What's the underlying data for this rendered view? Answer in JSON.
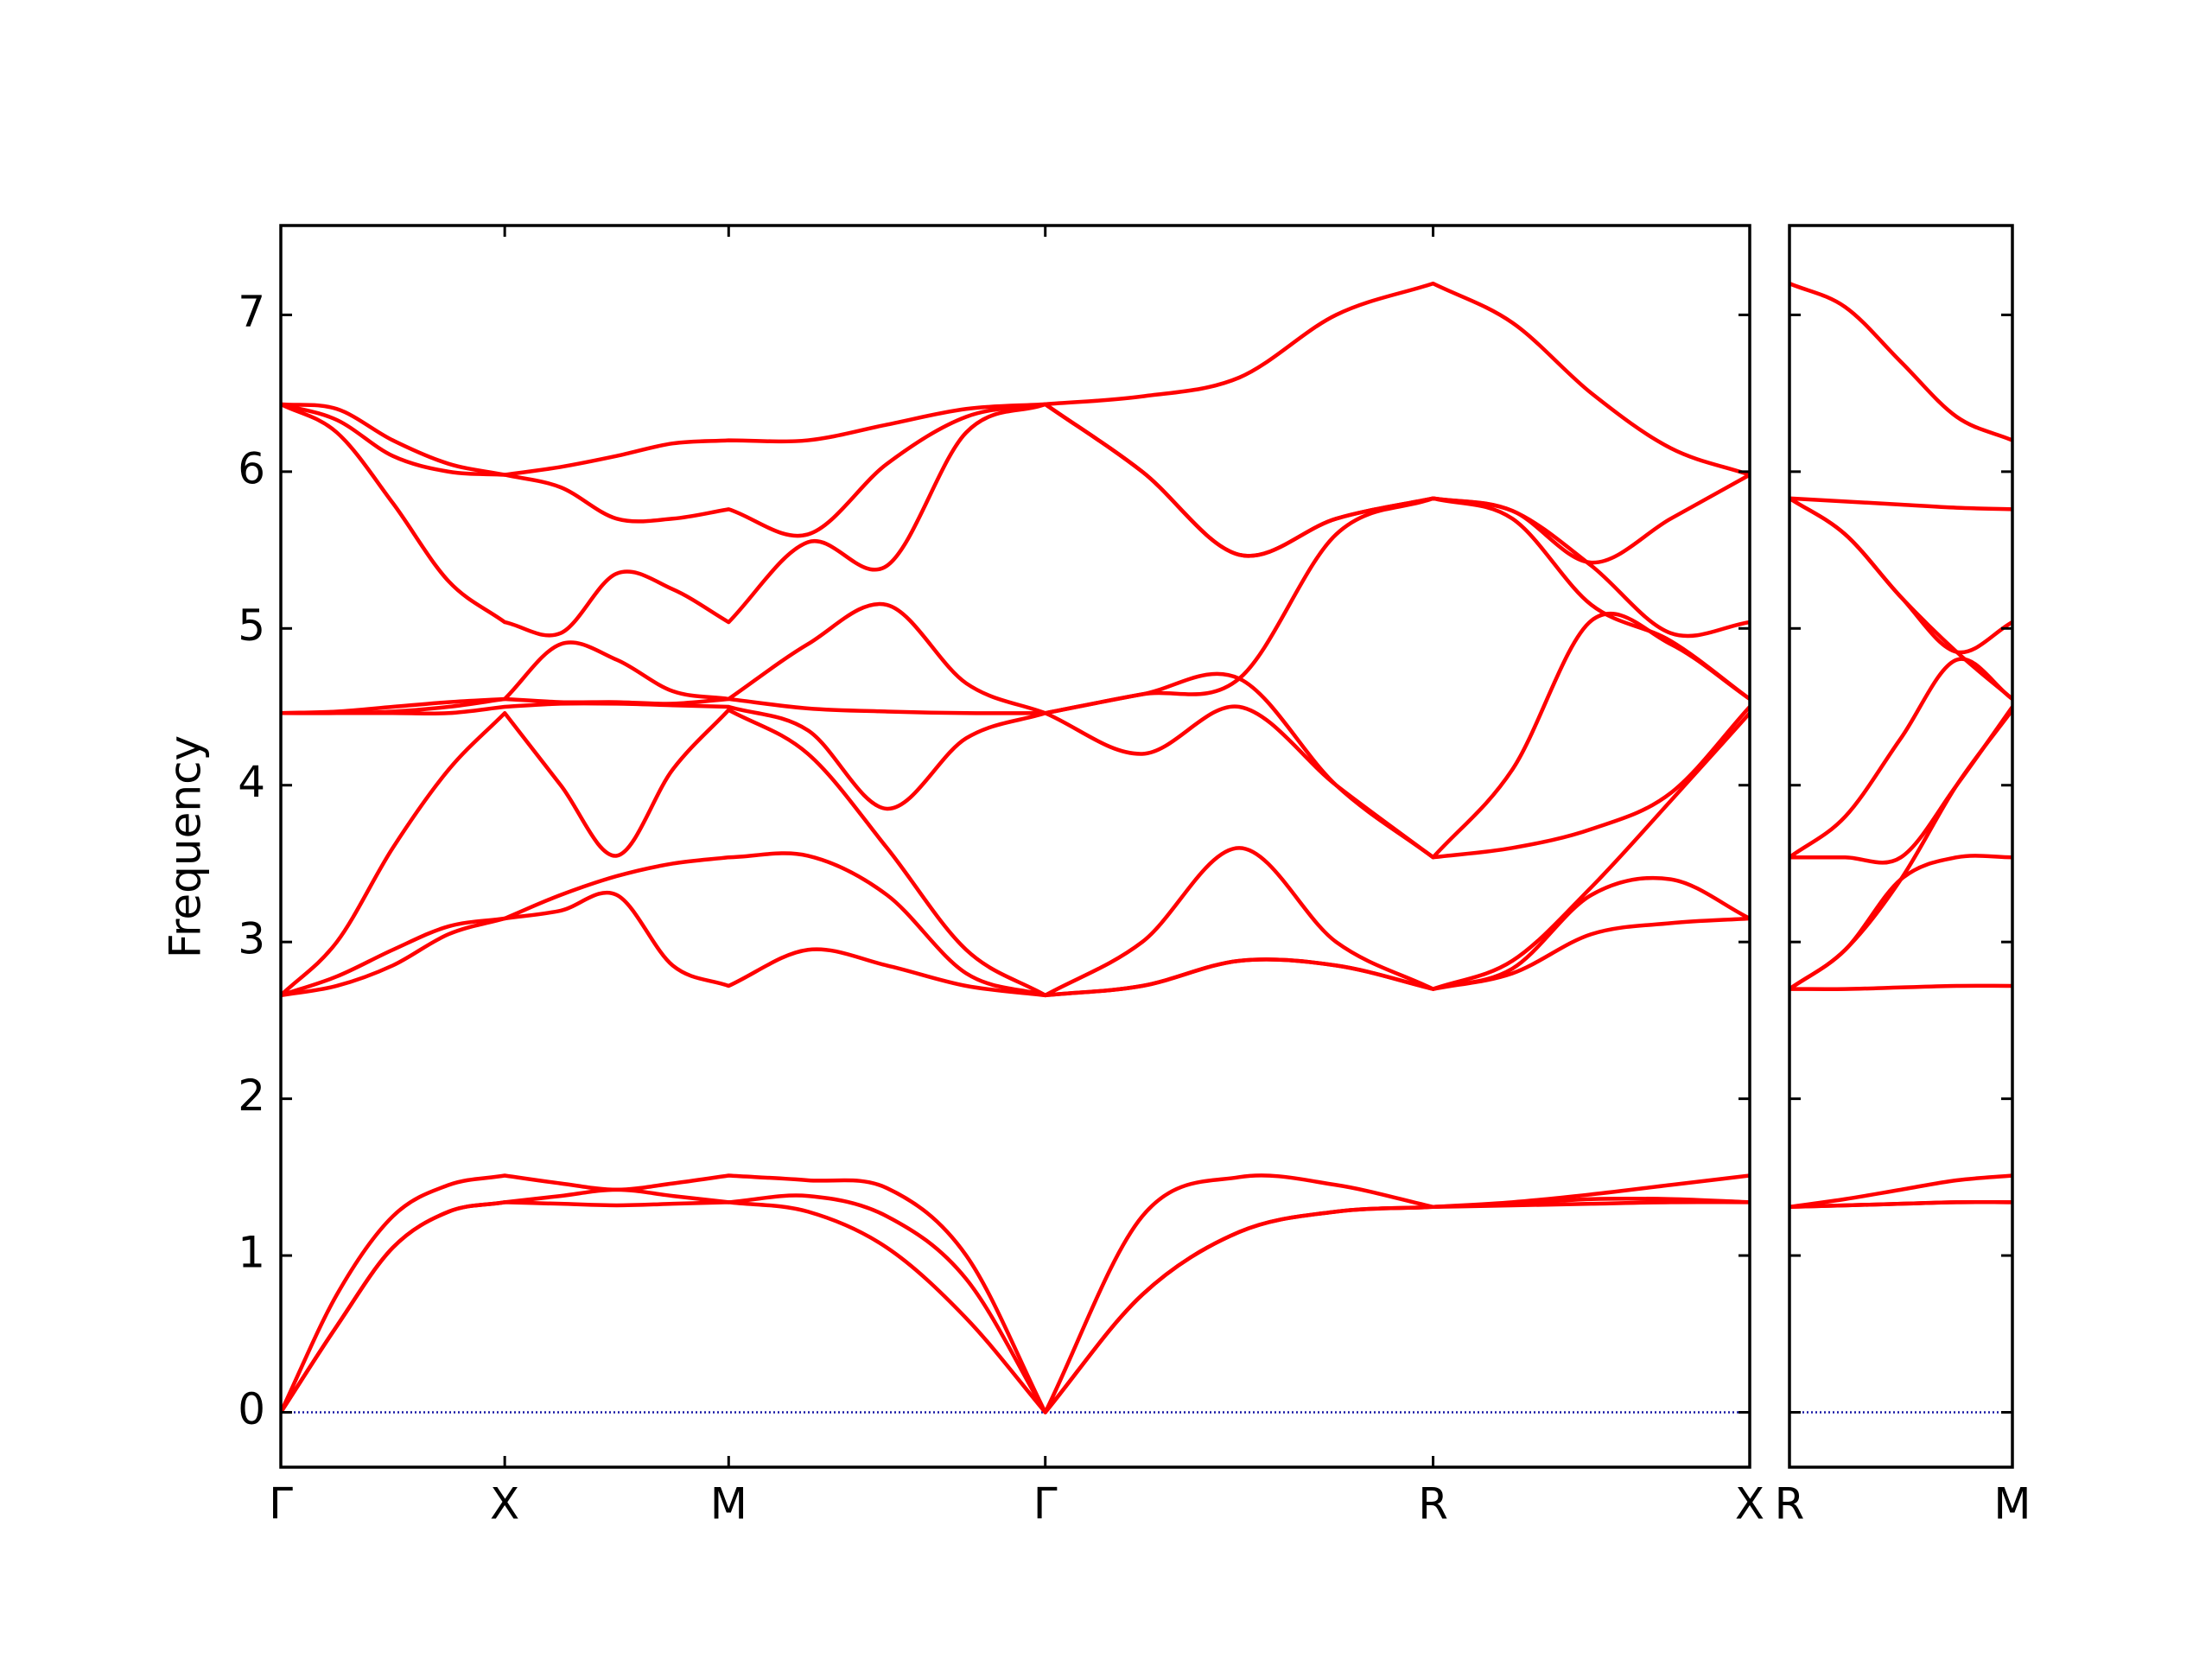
{
  "chart_data": [
    {
      "type": "line",
      "y_label": "Frequency",
      "color": "#ff0000",
      "hline": {
        "value": 0,
        "color": "#1a1aa6"
      },
      "xlim": [
        0,
        6.56
      ],
      "ylim": [
        -0.35,
        7.57
      ],
      "xticks": [
        {
          "value": 0,
          "label": "Γ"
        },
        {
          "value": 1,
          "label": "X"
        },
        {
          "value": 2,
          "label": "M"
        },
        {
          "value": 3.414,
          "label": "Γ"
        },
        {
          "value": 5.146,
          "label": "R"
        },
        {
          "value": 6.56,
          "label": "X"
        }
      ],
      "yticks": [
        0,
        1,
        2,
        3,
        4,
        5,
        6,
        7
      ],
      "show_ytick_labels": true,
      "x": [
        0,
        0.25,
        0.5,
        0.75,
        1,
        1.25,
        1.5,
        1.75,
        2,
        2.354,
        2.707,
        3.061,
        3.414,
        3.847,
        4.28,
        4.713,
        5.146,
        5.5,
        5.853,
        6.207,
        6.56
      ],
      "series": [
        {
          "values": [
            0,
            0.55,
            1.05,
            1.28,
            1.34,
            1.33,
            1.32,
            1.33,
            1.34,
            1.28,
            1.05,
            0.6,
            0,
            0.75,
            1.15,
            1.28,
            1.31,
            1.32,
            1.33,
            1.34,
            1.34
          ]
        },
        {
          "values": [
            0,
            0.55,
            1.05,
            1.28,
            1.34,
            1.38,
            1.42,
            1.38,
            1.34,
            1.38,
            1.25,
            0.85,
            0,
            0.75,
            1.15,
            1.28,
            1.31,
            1.33,
            1.36,
            1.36,
            1.34
          ]
        },
        {
          "values": [
            0,
            0.75,
            1.25,
            1.45,
            1.51,
            1.46,
            1.42,
            1.46,
            1.51,
            1.48,
            1.43,
            1.0,
            0,
            1.25,
            1.5,
            1.45,
            1.31,
            1.34,
            1.39,
            1.45,
            1.51
          ]
        },
        {
          "values": [
            2.66,
            2.72,
            2.85,
            3.05,
            3.15,
            3.2,
            3.3,
            2.85,
            2.72,
            2.95,
            2.85,
            2.72,
            2.66,
            2.72,
            2.88,
            2.85,
            2.7,
            2.8,
            3.05,
            3.12,
            3.15
          ]
        },
        {
          "values": [
            2.66,
            2.78,
            2.95,
            3.1,
            3.15,
            3.3,
            3.42,
            3.5,
            3.54,
            3.55,
            3.3,
            2.8,
            2.66,
            2.72,
            2.88,
            2.85,
            2.7,
            2.83,
            3.3,
            3.4,
            3.15
          ]
        },
        {
          "values": [
            2.66,
            3.0,
            3.6,
            4.1,
            4.46,
            4.0,
            3.55,
            4.1,
            4.48,
            4.2,
            3.6,
            2.95,
            2.66,
            3.0,
            3.6,
            3.0,
            2.7,
            2.88,
            3.35,
            3.9,
            4.46
          ]
        },
        {
          "values": [
            4.46,
            4.46,
            4.46,
            4.46,
            4.5,
            4.52,
            4.52,
            4.51,
            4.5,
            4.35,
            3.85,
            4.3,
            4.46,
            4.2,
            4.5,
            4.0,
            3.54,
            3.6,
            3.72,
            3.95,
            4.5
          ]
        },
        {
          "values": [
            4.46,
            4.46,
            4.47,
            4.5,
            4.55,
            4.53,
            4.53,
            4.52,
            4.55,
            4.49,
            4.47,
            4.46,
            4.46,
            4.58,
            4.68,
            4.0,
            3.54,
            4.1,
            5.05,
            4.9,
            4.55
          ]
        },
        {
          "values": [
            4.46,
            4.47,
            4.5,
            4.53,
            4.55,
            4.9,
            4.8,
            4.6,
            4.55,
            4.9,
            5.15,
            4.65,
            4.46,
            4.58,
            4.68,
            5.6,
            5.83,
            5.7,
            5.15,
            4.92,
            4.55
          ]
        },
        {
          "values": [
            6.43,
            6.25,
            5.8,
            5.3,
            5.04,
            4.97,
            5.35,
            5.25,
            5.04,
            5.55,
            5.4,
            6.25,
            6.43,
            6.0,
            5.47,
            5.7,
            5.83,
            5.75,
            5.4,
            4.97,
            5.04
          ]
        },
        {
          "values": [
            6.43,
            6.33,
            6.1,
            6.0,
            5.98,
            5.9,
            5.7,
            5.7,
            5.76,
            5.6,
            6.05,
            6.35,
            6.43,
            6.0,
            5.47,
            5.7,
            5.83,
            5.75,
            5.42,
            5.7,
            5.98
          ]
        },
        {
          "values": [
            6.43,
            6.4,
            6.2,
            6.05,
            5.98,
            6.03,
            6.1,
            6.18,
            6.2,
            6.2,
            6.3,
            6.4,
            6.43,
            6.48,
            6.6,
            7.0,
            7.2,
            6.95,
            6.5,
            6.15,
            5.98
          ]
        }
      ]
    },
    {
      "type": "line",
      "color": "#ff0000",
      "hline": {
        "value": 0,
        "color": "#1a1aa6"
      },
      "xlim": [
        0,
        1
      ],
      "ylim": [
        -0.35,
        7.57
      ],
      "xticks": [
        {
          "value": 0,
          "label": "R"
        },
        {
          "value": 1,
          "label": "M"
        }
      ],
      "yticks": [
        0,
        1,
        2,
        3,
        4,
        5,
        6,
        7
      ],
      "show_ytick_labels": false,
      "x": [
        0,
        0.25,
        0.5,
        0.75,
        1
      ],
      "series": [
        {
          "values": [
            1.31,
            1.32,
            1.33,
            1.34,
            1.34
          ]
        },
        {
          "values": [
            1.31,
            1.32,
            1.33,
            1.34,
            1.34
          ]
        },
        {
          "values": [
            1.31,
            1.36,
            1.42,
            1.48,
            1.51
          ]
        },
        {
          "values": [
            2.7,
            2.7,
            2.71,
            2.72,
            2.72
          ]
        },
        {
          "values": [
            2.7,
            2.95,
            3.4,
            3.54,
            3.54
          ]
        },
        {
          "values": [
            2.7,
            2.95,
            3.4,
            4.0,
            4.48
          ]
        },
        {
          "values": [
            3.54,
            3.54,
            3.54,
            4.0,
            4.5
          ]
        },
        {
          "values": [
            3.54,
            3.8,
            4.3,
            4.8,
            4.55
          ]
        },
        {
          "values": [
            5.83,
            5.6,
            5.2,
            4.85,
            4.55
          ]
        },
        {
          "values": [
            5.83,
            5.6,
            5.2,
            4.85,
            5.04
          ]
        },
        {
          "values": [
            5.83,
            5.81,
            5.79,
            5.77,
            5.76
          ]
        },
        {
          "values": [
            7.2,
            7.05,
            6.7,
            6.35,
            6.2
          ]
        }
      ]
    }
  ]
}
